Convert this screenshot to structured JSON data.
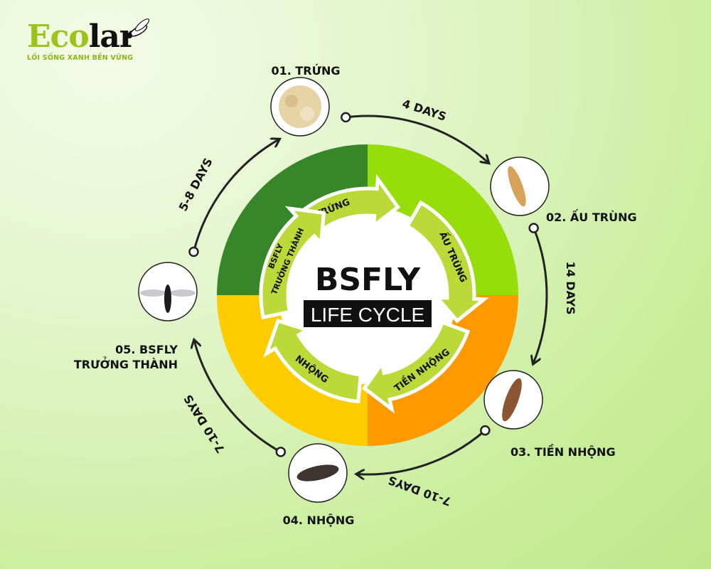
{
  "logo": {
    "part1": "Eco",
    "part2": "lar",
    "tagline": "LỐI SỐNG XANH BỀN VỮNG"
  },
  "center": {
    "title": "BSFLY",
    "subtitle": "LIFE CYCLE"
  },
  "colors": {
    "q1": "#38862a",
    "q2": "#97dc0b",
    "q3": "#ff9900",
    "q4": "#ffcc02",
    "arrow": "#bcd93a"
  },
  "inner_arrows": [
    "TRỨNG",
    "ẤU TRÙNG",
    "TIỀN NHỘNG",
    "NHỘNG",
    "BSFLY",
    "TRƯỞNG THÀNH"
  ],
  "stages": [
    {
      "label": "01. TRỨNG"
    },
    {
      "label": "02. ẤU TRÙNG"
    },
    {
      "label": "03. TIỀN NHỘNG"
    },
    {
      "label": "04. NHỘNG"
    },
    {
      "label": "05. BSFLY",
      "label2": "TRƯỞNG THÀNH"
    }
  ],
  "durations": [
    "4 DAYS",
    "14 DAYS",
    "7-10 DAYS",
    "7-10 DAYS",
    "5-8 DAYS"
  ]
}
